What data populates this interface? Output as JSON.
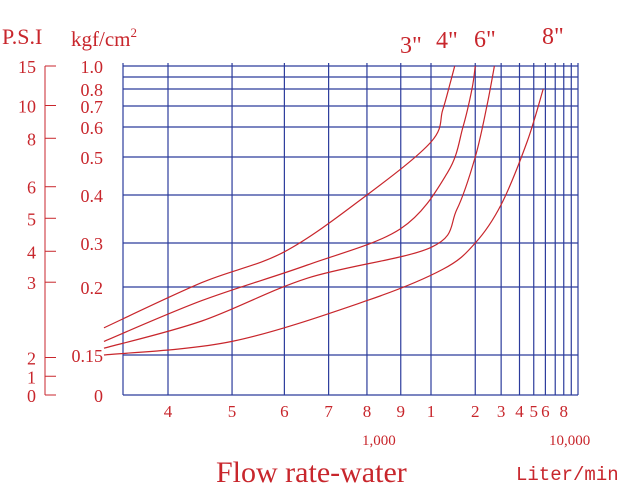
{
  "chart_data": {
    "type": "line",
    "title": "Flow rate-water",
    "xlabel": "Flow rate-water",
    "x_unit_label": "Liter/min",
    "x_scale": "log",
    "x_tick_labels": [
      "4",
      "5",
      "6",
      "7",
      "8",
      "9",
      "1",
      "2",
      "3",
      "4",
      "5",
      "6",
      "8"
    ],
    "x_tick_values": [
      400,
      500,
      600,
      700,
      800,
      900,
      1000,
      2000,
      3000,
      4000,
      5000,
      6000,
      8000
    ],
    "x_decade_labels": [
      "1,000",
      "10,000"
    ],
    "y_axis_left_title": "P.S.I",
    "y_axis_left_ticks": [
      "15",
      "10",
      "8",
      "6",
      "5",
      "4",
      "3",
      "2",
      "1",
      "0"
    ],
    "y_axis_kgf_title": "kgf/cm",
    "y_axis_kgf_superscript": "2",
    "y_axis_kgf_ticks": [
      "1.0",
      "0.8",
      "0.7",
      "0.6",
      "0.5",
      "0.4",
      "0.3",
      "0.2",
      "0.15",
      "0"
    ],
    "grid": true,
    "series": [
      {
        "name": "3\"",
        "x": [
          320,
          450,
          600,
          800,
          1000,
          1200,
          1350,
          1450
        ],
        "y": [
          0.17,
          0.21,
          0.28,
          0.4,
          0.55,
          0.68,
          0.85,
          1.0
        ]
      },
      {
        "name": "4\"",
        "x": [
          320,
          450,
          650,
          900,
          1300,
          1650,
          1900,
          2000
        ],
        "y": [
          0.16,
          0.19,
          0.25,
          0.33,
          0.46,
          0.6,
          0.8,
          1.0
        ]
      },
      {
        "name": "6\"",
        "x": [
          320,
          450,
          650,
          1000,
          1500,
          2000,
          2400,
          2700
        ],
        "y": [
          0.155,
          0.175,
          0.22,
          0.29,
          0.37,
          0.5,
          0.7,
          1.0
        ]
      },
      {
        "name": "8\"",
        "x": [
          320,
          500,
          800,
          1200,
          2000,
          3000,
          4500,
          5800
        ],
        "y": [
          0.15,
          0.16,
          0.19,
          0.24,
          0.3,
          0.38,
          0.55,
          0.8
        ]
      }
    ]
  },
  "colors": {
    "grid": "#2c3c9c",
    "ink": "#c8262c",
    "background": "#ffffff"
  }
}
